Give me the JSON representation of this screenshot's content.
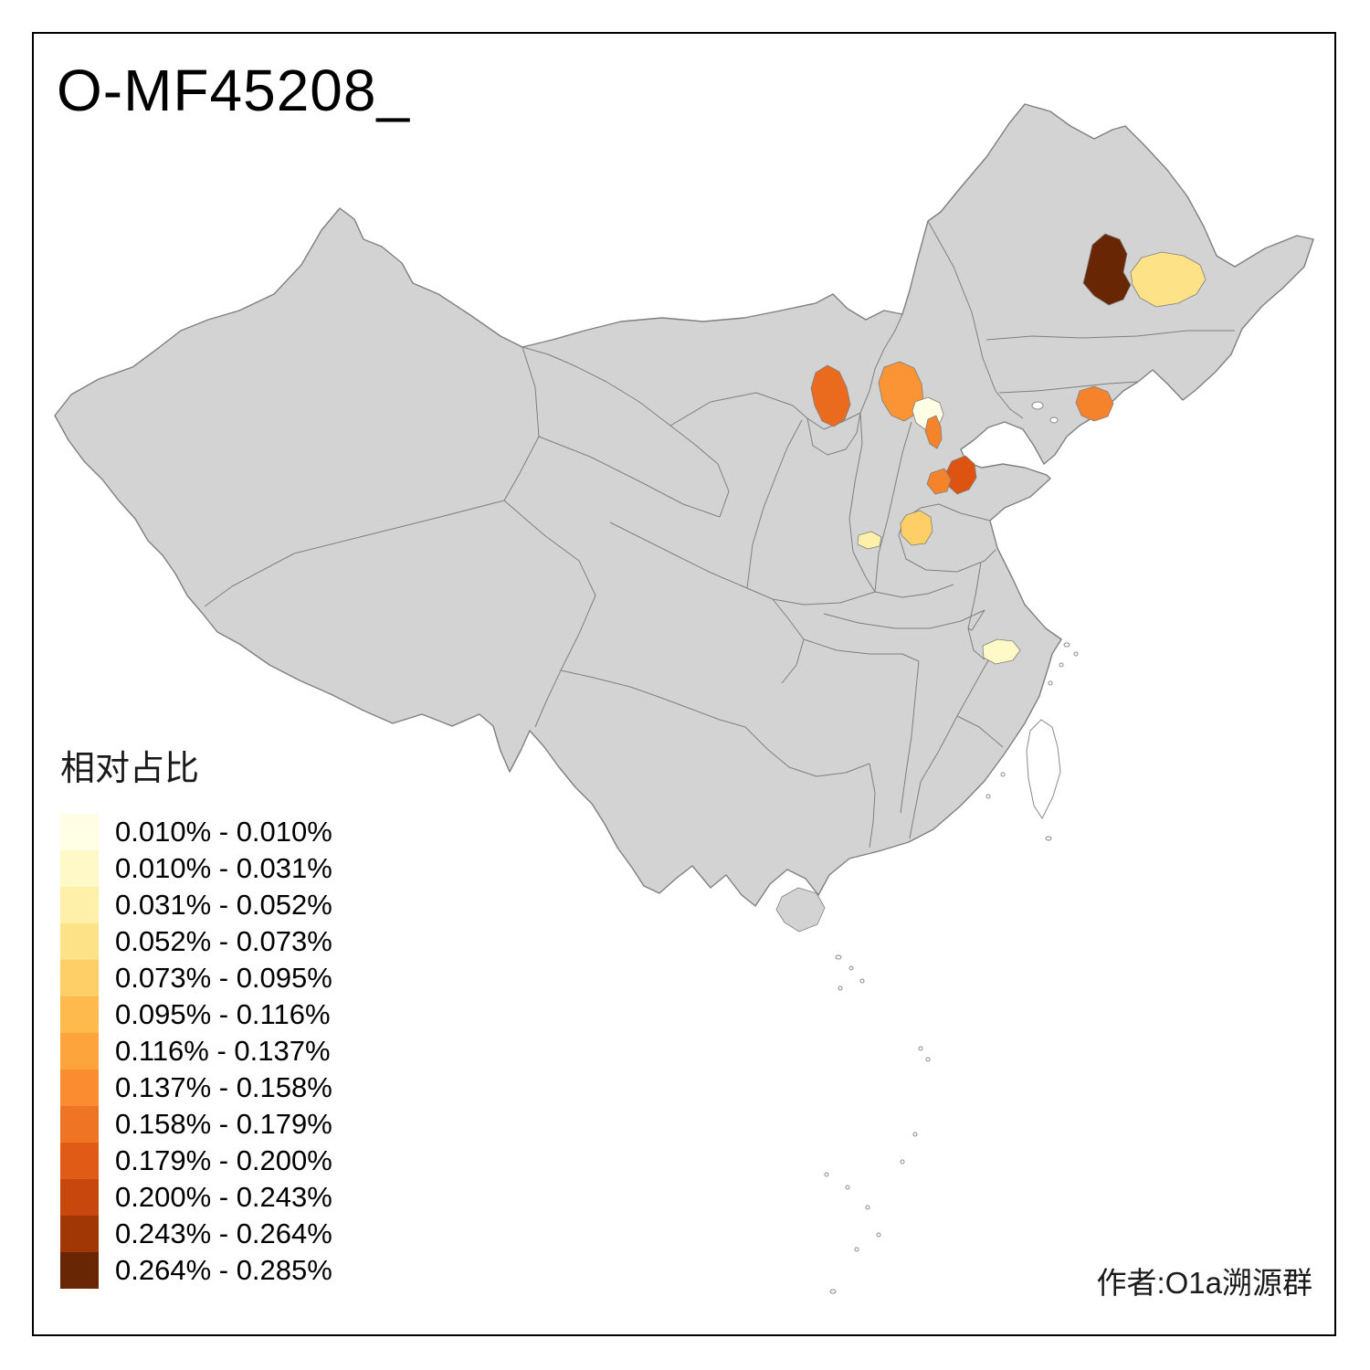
{
  "title": "O-MF45208_",
  "author": "作者:O1a溯源群",
  "legend": {
    "title": "相对占比",
    "bins": [
      {
        "label": "0.010% - 0.010%",
        "color": "#FFFFE5"
      },
      {
        "label": "0.010% - 0.031%",
        "color": "#FFF9C8"
      },
      {
        "label": "0.031% - 0.052%",
        "color": "#FEF0A9"
      },
      {
        "label": "0.052% - 0.073%",
        "color": "#FEE288"
      },
      {
        "label": "0.073% - 0.095%",
        "color": "#FECF66"
      },
      {
        "label": "0.095% - 0.116%",
        "color": "#FEBA4C"
      },
      {
        "label": "0.116% - 0.137%",
        "color": "#FEA43D"
      },
      {
        "label": "0.137% - 0.158%",
        "color": "#FB8C30"
      },
      {
        "label": "0.158% - 0.179%",
        "color": "#EF7423"
      },
      {
        "label": "0.179% - 0.200%",
        "color": "#E05C16"
      },
      {
        "label": "0.200% - 0.243%",
        "color": "#C8470D"
      },
      {
        "label": "0.243% - 0.264%",
        "color": "#A23706"
      },
      {
        "label": "0.264% - 0.285%",
        "color": "#692605"
      }
    ]
  },
  "map": {
    "base_fill": "#D3D3D3",
    "border_color": "#7F7F7F",
    "regions": [
      {
        "name": "northeast-dark-brown",
        "color": "#692605",
        "bin_label": "0.264% - 0.285%"
      },
      {
        "name": "northeast-pale-yellow",
        "color": "#FEE288",
        "bin_label": "0.052% - 0.073%"
      },
      {
        "name": "inner-mongolia-orange",
        "color": "#EA6A1E",
        "bin_label": "0.158% - 0.179%"
      },
      {
        "name": "north-hebei-orange",
        "color": "#FB9434",
        "bin_label": "0.137% - 0.158%"
      },
      {
        "name": "beijing-palest",
        "color": "#FFFFE5",
        "bin_label": "0.010% - 0.010%"
      },
      {
        "name": "tianjin-orange-strip",
        "color": "#F5832C",
        "bin_label": "0.137% - 0.158%"
      },
      {
        "name": "liaoning-orange",
        "color": "#F5832C",
        "bin_label": "0.137% - 0.158%"
      },
      {
        "name": "shandong-dark-orange",
        "color": "#DD5412",
        "bin_label": "0.179% - 0.200%"
      },
      {
        "name": "shandong-west-orange",
        "color": "#F5832C",
        "bin_label": "0.137% - 0.158%"
      },
      {
        "name": "west-shandong-light-orange",
        "color": "#FECF66",
        "bin_label": "0.073% - 0.095%"
      },
      {
        "name": "shaanxi-pale-yellow",
        "color": "#FEF0A9",
        "bin_label": "0.031% - 0.052%"
      },
      {
        "name": "south-jiangsu-pale-yellow",
        "color": "#FFF9C8",
        "bin_label": "0.010% - 0.031%"
      }
    ]
  }
}
